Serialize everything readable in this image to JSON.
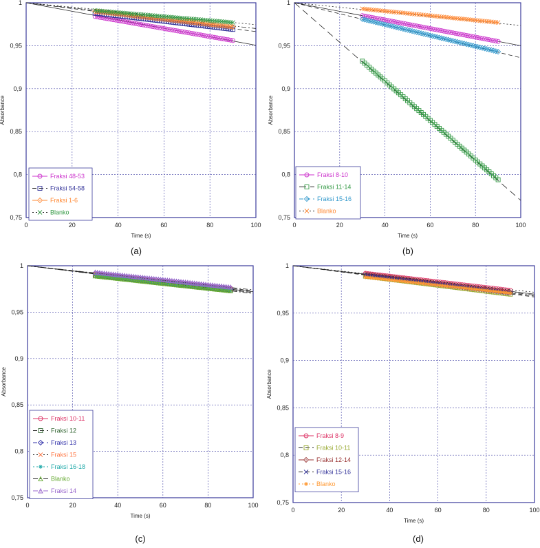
{
  "chart_data": [
    {
      "panel_label": "(a)",
      "type": "line",
      "xlabel": "Time (s)",
      "ylabel": "Absorbance",
      "xlim": [
        0,
        100
      ],
      "ylim": [
        0.75,
        1
      ],
      "xticks": [
        "0",
        "20",
        "40",
        "60",
        "80",
        "100"
      ],
      "yticks": [
        "0,75",
        "0,8",
        "0,85",
        "0,9",
        "0,95",
        "1"
      ],
      "legend_position": "bottom-left",
      "series": [
        {
          "name": "Fraksi 48-53",
          "color": "#cc33cc",
          "marker": "circle",
          "x_start": 30,
          "x_end": 90,
          "y_start": 0.984,
          "y_end": 0.956,
          "fit": [
            1.0,
            0.9505
          ],
          "fit_dash": "solid"
        },
        {
          "name": "Fraksi 54-58",
          "color": "#333399",
          "marker": "square",
          "x_start": 30,
          "x_end": 90,
          "y_start": 0.988,
          "y_end": 0.969,
          "fit": [
            1.0,
            0.9665
          ],
          "fit_dash": "dash"
        },
        {
          "name": "Fraksi 1-6",
          "color": "#ff8833",
          "marker": "diamond",
          "x_start": 30,
          "x_end": 90,
          "y_start": 0.99,
          "y_end": 0.972,
          "fit": [
            1.0,
            0.97
          ],
          "fit_dash": "dashdot"
        },
        {
          "name": "Blanko",
          "color": "#339944",
          "marker": "x",
          "x_start": 30,
          "x_end": 90,
          "y_start": 0.991,
          "y_end": 0.977,
          "fit": [
            1.0,
            0.9745
          ],
          "fit_dash": "dot"
        }
      ]
    },
    {
      "panel_label": "(b)",
      "type": "line",
      "xlabel": "Time (s)",
      "ylabel": "Absorbance",
      "xlim": [
        0,
        100
      ],
      "ylim": [
        0.75,
        1
      ],
      "xticks": [
        "0",
        "20",
        "40",
        "60",
        "80",
        "100"
      ],
      "yticks": [
        "0,75",
        "0,8",
        "0,85",
        "0,9",
        "0,95",
        "1"
      ],
      "legend_position": "bottom-left",
      "series": [
        {
          "name": "Fraksi 8-10",
          "color": "#cc33cc",
          "marker": "circle",
          "x_start": 30,
          "x_end": 90,
          "y_start": 0.985,
          "y_end": 0.955,
          "fit": [
            1.0,
            0.95
          ],
          "fit_dash": "solid"
        },
        {
          "name": "Fraksi 11-14",
          "color": "#339944",
          "marker": "square",
          "x_start": 30,
          "x_end": 90,
          "y_start": 0.932,
          "y_end": 0.794,
          "fit": [
            1.0,
            0.77
          ],
          "fit_dash": "longdash"
        },
        {
          "name": "Fraksi 15-16",
          "color": "#3399cc",
          "marker": "diamond",
          "x_start": 30,
          "x_end": 90,
          "y_start": 0.981,
          "y_end": 0.943,
          "fit": [
            1.0,
            0.936
          ],
          "fit_dash": "dash"
        },
        {
          "name": "Blanko",
          "color": "#ff8833",
          "marker": "x",
          "x_start": 30,
          "x_end": 90,
          "y_start": 0.993,
          "y_end": 0.977,
          "fit": [
            1.0,
            0.9735
          ],
          "fit_dash": "dot"
        }
      ]
    },
    {
      "panel_label": "(c)",
      "type": "line",
      "xlabel": "Time (s)",
      "ylabel": "Absorbance",
      "xlim": [
        0,
        100
      ],
      "ylim": [
        0.75,
        1
      ],
      "xticks": [
        "0",
        "20",
        "40",
        "60",
        "80",
        "100"
      ],
      "yticks": [
        "0,75",
        "0,8",
        "0,85",
        "0,9",
        "0,95",
        "1"
      ],
      "legend_position": "bottom-left",
      "series": [
        {
          "name": "Fraksi 10-11",
          "color": "#dd3366",
          "marker": "circle",
          "x_start": 30,
          "x_end": 90,
          "y_start": 0.991,
          "y_end": 0.975,
          "fit": [
            1.0,
            0.972
          ],
          "fit_dash": "solid"
        },
        {
          "name": "Fraksi 12",
          "color": "#336633",
          "marker": "square",
          "x_start": 30,
          "x_end": 90,
          "y_start": 0.99,
          "y_end": 0.974,
          "fit": [
            1.0,
            0.971
          ],
          "fit_dash": "dash"
        },
        {
          "name": "Fraksi 13",
          "color": "#3333aa",
          "marker": "diamond",
          "x_start": 30,
          "x_end": 90,
          "y_start": 0.992,
          "y_end": 0.976,
          "fit": [
            1.0,
            0.973
          ],
          "fit_dash": "dash"
        },
        {
          "name": "Fraksi 15",
          "color": "#ff7744",
          "marker": "x",
          "x_start": 30,
          "x_end": 90,
          "y_start": 0.991,
          "y_end": 0.975,
          "fit": [
            1.0,
            0.972
          ],
          "fit_dash": "dot"
        },
        {
          "name": "Fraksi 16-18",
          "color": "#22aaaa",
          "marker": "star",
          "x_start": 30,
          "x_end": 90,
          "y_start": 0.99,
          "y_end": 0.974,
          "fit": [
            1.0,
            0.971
          ],
          "fit_dash": "dot"
        },
        {
          "name": "Blanko",
          "color": "#66aa33",
          "marker": "triangle",
          "x_start": 30,
          "x_end": 90,
          "y_start": 0.989,
          "y_end": 0.973,
          "fit": [
            1.0,
            0.97
          ],
          "fit_dash": "dashdot"
        },
        {
          "name": "Fraksi 14",
          "color": "#9966cc",
          "marker": "triangle",
          "x_start": 30,
          "x_end": 90,
          "y_start": 0.993,
          "y_end": 0.977,
          "fit": [
            1.0,
            0.974
          ],
          "fit_dash": "dashdot"
        }
      ]
    },
    {
      "panel_label": "(d)",
      "type": "line",
      "xlabel": "Time (s)",
      "ylabel": "Absorbance",
      "xlim": [
        0,
        100
      ],
      "ylim": [
        0.75,
        1
      ],
      "xticks": [
        "0",
        "20",
        "40",
        "60",
        "80",
        "100"
      ],
      "yticks": [
        "0,75",
        "0,8",
        "0,85",
        "0,9",
        "0,95",
        "1"
      ],
      "legend_position": "bottom-left",
      "series": [
        {
          "name": "Fraksi 8-9",
          "color": "#dd3366",
          "marker": "circle",
          "x_start": 30,
          "x_end": 90,
          "y_start": 0.992,
          "y_end": 0.974,
          "fit": [
            1.0,
            0.97
          ],
          "fit_dash": "solid"
        },
        {
          "name": "Fraksi 10-11",
          "color": "#99aa33",
          "marker": "square",
          "x_start": 30,
          "x_end": 90,
          "y_start": 0.989,
          "y_end": 0.97,
          "fit": [
            1.0,
            0.967
          ],
          "fit_dash": "dash"
        },
        {
          "name": "Fraksi 12-14",
          "color": "#993333",
          "marker": "diamond",
          "x_start": 30,
          "x_end": 90,
          "y_start": 0.991,
          "y_end": 0.972,
          "fit": [
            1.0,
            0.969
          ],
          "fit_dash": "dashdot"
        },
        {
          "name": "Fraksi 15-16",
          "color": "#333399",
          "marker": "x",
          "x_start": 30,
          "x_end": 90,
          "y_start": 0.99,
          "y_end": 0.971,
          "fit": [
            1.0,
            0.968
          ],
          "fit_dash": "dash"
        },
        {
          "name": "Blanko",
          "color": "#ff9933",
          "marker": "star",
          "x_start": 30,
          "x_end": 90,
          "y_start": 0.988,
          "y_end": 0.971,
          "fit": [
            1.0,
            0.972
          ],
          "fit_dash": "dot"
        }
      ]
    }
  ]
}
